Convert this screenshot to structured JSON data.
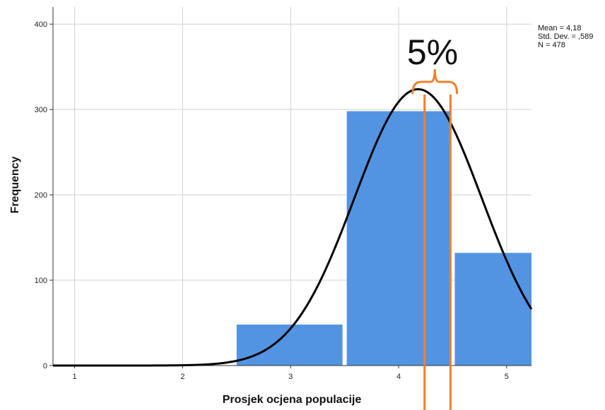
{
  "chart_data": {
    "type": "bar",
    "xlabel": "Prosjek ocjena populacije",
    "ylabel": "Frequency",
    "x_ticks": [
      "1",
      "2",
      "3",
      "4",
      "5"
    ],
    "y_ticks": [
      "0",
      "100",
      "200",
      "300",
      "400"
    ],
    "xlim": [
      0.8,
      5.23
    ],
    "ylim": [
      0,
      420
    ],
    "grid": true,
    "bins": [
      {
        "x0": 2.5,
        "x1": 3.5,
        "value": 48
      },
      {
        "x0": 3.5,
        "x1": 4.5,
        "value": 298
      },
      {
        "x0": 4.5,
        "x1": 5.23,
        "value": 132
      }
    ],
    "bar_color": "#5294E2",
    "curve": {
      "type": "normal",
      "mean": 4.18,
      "sd": 0.589,
      "n": 478,
      "bin_width": 1.0,
      "color": "#000000"
    },
    "stats": {
      "mean": "Mean = 4,18",
      "sd": "Std. Dev. = ,589",
      "n": "N = 478"
    },
    "annotation": {
      "text": "5%",
      "color": "#F07F2A",
      "lines_x": [
        4.24,
        4.48
      ],
      "brace_x": [
        4.13,
        4.54
      ]
    }
  }
}
